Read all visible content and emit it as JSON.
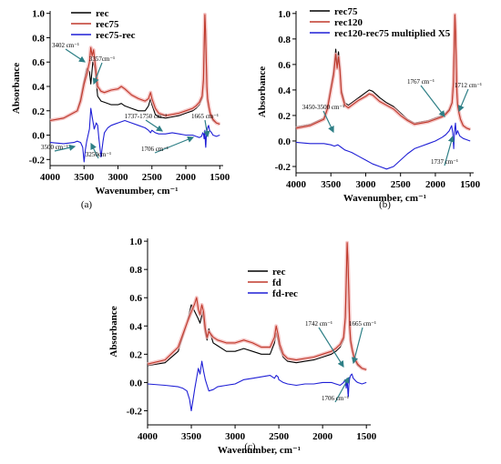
{
  "chart_data": [
    {
      "id": "a",
      "type": "line",
      "panel_label": "(a)",
      "xlabel": "Wavenumber, cm⁻¹",
      "ylabel": "Absorbance",
      "xlim": [
        4000,
        1450
      ],
      "ylim": [
        -0.25,
        1.02
      ],
      "xticks": [
        4000,
        3500,
        3000,
        2500,
        2000,
        1500
      ],
      "yticks": [
        -0.2,
        0.0,
        0.2,
        0.4,
        0.6,
        0.8,
        1.0
      ],
      "ytick_labels": [
        "-0.2",
        "0.0",
        "0.2",
        "0.4",
        "0.6",
        "0.8",
        "1.0"
      ],
      "legend": "top-left",
      "series": [
        {
          "name": "rec",
          "color": "#000000",
          "x": [
            4000,
            3800,
            3600,
            3550,
            3500,
            3460,
            3420,
            3400,
            3370,
            3340,
            3300,
            3250,
            3200,
            3100,
            3000,
            2950,
            2900,
            2800,
            2700,
            2600,
            2550,
            2520,
            2500,
            2450,
            2400,
            2300,
            2200,
            2100,
            2000,
            1900,
            1850,
            1800,
            1760,
            1740,
            1730,
            1720,
            1710,
            1700,
            1690,
            1680,
            1660,
            1640,
            1600,
            1550,
            1500
          ],
          "y": [
            0.12,
            0.14,
            0.2,
            0.3,
            0.45,
            0.55,
            0.52,
            0.42,
            0.6,
            0.55,
            0.32,
            0.28,
            0.27,
            0.25,
            0.25,
            0.26,
            0.24,
            0.22,
            0.2,
            0.2,
            0.24,
            0.3,
            0.25,
            0.17,
            0.15,
            0.14,
            0.15,
            0.16,
            0.18,
            0.2,
            0.22,
            0.25,
            0.3,
            0.45,
            0.7,
            0.98,
            0.85,
            0.6,
            0.38,
            0.28,
            0.22,
            0.17,
            0.12,
            0.1,
            0.09
          ]
        },
        {
          "name": "rec75",
          "color": "#c0392b",
          "x": [
            4000,
            3800,
            3600,
            3550,
            3500,
            3460,
            3420,
            3400,
            3380,
            3360,
            3340,
            3300,
            3250,
            3200,
            3100,
            3000,
            2950,
            2900,
            2800,
            2700,
            2600,
            2550,
            2520,
            2500,
            2450,
            2400,
            2300,
            2200,
            2100,
            2000,
            1900,
            1850,
            1800,
            1760,
            1740,
            1730,
            1720,
            1710,
            1700,
            1690,
            1680,
            1660,
            1640,
            1600,
            1550,
            1500
          ],
          "y": [
            0.12,
            0.14,
            0.2,
            0.28,
            0.42,
            0.5,
            0.6,
            0.72,
            0.65,
            0.7,
            0.6,
            0.4,
            0.36,
            0.35,
            0.37,
            0.38,
            0.4,
            0.38,
            0.33,
            0.3,
            0.28,
            0.3,
            0.35,
            0.3,
            0.22,
            0.18,
            0.16,
            0.17,
            0.18,
            0.2,
            0.22,
            0.24,
            0.27,
            0.32,
            0.46,
            0.72,
            0.99,
            0.86,
            0.62,
            0.4,
            0.3,
            0.23,
            0.18,
            0.13,
            0.1,
            0.09
          ]
        },
        {
          "name": "rec75-rec",
          "color": "#1f1fd6",
          "x": [
            4000,
            3800,
            3650,
            3600,
            3550,
            3520,
            3500,
            3480,
            3460,
            3440,
            3420,
            3400,
            3380,
            3350,
            3320,
            3300,
            3280,
            3250,
            3220,
            3200,
            3150,
            3100,
            3000,
            2900,
            2800,
            2700,
            2600,
            2550,
            2520,
            2500,
            2450,
            2400,
            2300,
            2200,
            2100,
            2000,
            1900,
            1850,
            1800,
            1770,
            1750,
            1740,
            1730,
            1720,
            1710,
            1706,
            1700,
            1690,
            1680,
            1665,
            1650,
            1620,
            1600,
            1550,
            1500
          ],
          "y": [
            -0.06,
            -0.07,
            -0.06,
            -0.05,
            -0.06,
            -0.1,
            -0.22,
            -0.12,
            -0.05,
            0.0,
            0.05,
            0.22,
            0.15,
            0.05,
            0.1,
            0.08,
            -0.03,
            -0.18,
            -0.05,
            0.02,
            0.06,
            0.08,
            0.1,
            0.12,
            0.1,
            0.08,
            0.06,
            0.04,
            0.02,
            0.04,
            0.02,
            0.01,
            0.01,
            0.02,
            0.01,
            0.0,
            0.0,
            -0.01,
            -0.02,
            -0.01,
            0.02,
            0.01,
            -0.03,
            0.04,
            -0.08,
            -0.1,
            -0.02,
            0.03,
            0.06,
            0.08,
            0.04,
            0.02,
            0.0,
            -0.01,
            0.0
          ]
        }
      ],
      "annotations": [
        {
          "text": "3402 cm⁻¹",
          "x": 3402,
          "y": 0.72
        },
        {
          "text": "3357cm⁻¹",
          "x": 3357,
          "y": 0.6
        },
        {
          "text": "1737-1750 cm⁻¹",
          "x": 1745,
          "y": 0.22
        },
        {
          "text": "1665 cm⁻¹",
          "x": 1665,
          "y": 0.18
        },
        {
          "text": "3500 cm⁻¹",
          "x": 3500,
          "y": -0.18
        },
        {
          "text": "3250cm⁻¹",
          "x": 3250,
          "y": -0.2
        },
        {
          "text": "1706 cm⁻¹",
          "x": 1706,
          "y": -0.2
        }
      ]
    },
    {
      "id": "b",
      "type": "line",
      "panel_label": "(b)",
      "xlabel": "Wavenumber, cm⁻¹",
      "ylabel": "Absorbance",
      "xlim": [
        4000,
        1450
      ],
      "ylim": [
        -0.25,
        1.02
      ],
      "xticks": [
        4000,
        3500,
        3000,
        2500,
        2000,
        1500
      ],
      "yticks": [
        -0.2,
        0.0,
        0.2,
        0.4,
        0.6,
        0.8,
        1.0
      ],
      "ytick_labels": [
        "-0.2",
        "0.0",
        "0.2",
        "0.4",
        "0.6",
        "0.8",
        "1.0"
      ],
      "legend": "top-left",
      "series": [
        {
          "name": "rec75",
          "color": "#000000",
          "x": [
            4000,
            3800,
            3600,
            3550,
            3500,
            3460,
            3430,
            3410,
            3390,
            3370,
            3350,
            3300,
            3250,
            3200,
            3100,
            3000,
            2950,
            2900,
            2800,
            2700,
            2600,
            2500,
            2400,
            2300,
            2200,
            2100,
            2000,
            1900,
            1850,
            1800,
            1760,
            1740,
            1730,
            1720,
            1710,
            1700,
            1690,
            1680,
            1660,
            1640,
            1600,
            1550,
            1500
          ],
          "y": [
            0.11,
            0.13,
            0.18,
            0.26,
            0.42,
            0.55,
            0.72,
            0.6,
            0.7,
            0.58,
            0.4,
            0.3,
            0.28,
            0.3,
            0.34,
            0.38,
            0.4,
            0.39,
            0.34,
            0.3,
            0.27,
            0.22,
            0.17,
            0.14,
            0.15,
            0.16,
            0.18,
            0.2,
            0.22,
            0.25,
            0.3,
            0.45,
            0.7,
            0.99,
            0.85,
            0.6,
            0.38,
            0.28,
            0.22,
            0.17,
            0.12,
            0.1,
            0.09
          ]
        },
        {
          "name": "rec120",
          "color": "#c0392b",
          "x": [
            4000,
            3800,
            3600,
            3550,
            3500,
            3460,
            3430,
            3410,
            3390,
            3370,
            3350,
            3300,
            3250,
            3200,
            3100,
            3000,
            2950,
            2900,
            2800,
            2700,
            2600,
            2500,
            2400,
            2300,
            2200,
            2100,
            2000,
            1900,
            1850,
            1800,
            1760,
            1740,
            1730,
            1720,
            1710,
            1700,
            1690,
            1680,
            1660,
            1640,
            1600,
            1550,
            1500
          ],
          "y": [
            0.1,
            0.12,
            0.17,
            0.25,
            0.4,
            0.52,
            0.68,
            0.57,
            0.66,
            0.55,
            0.38,
            0.28,
            0.26,
            0.28,
            0.32,
            0.35,
            0.37,
            0.36,
            0.31,
            0.28,
            0.25,
            0.2,
            0.16,
            0.13,
            0.14,
            0.15,
            0.17,
            0.19,
            0.21,
            0.24,
            0.3,
            0.46,
            0.72,
            0.99,
            0.86,
            0.6,
            0.38,
            0.28,
            0.22,
            0.17,
            0.12,
            0.1,
            0.09
          ]
        },
        {
          "name": "rec120-rec75 multiplied X5",
          "color": "#1f1fd6",
          "x": [
            4000,
            3800,
            3600,
            3500,
            3450,
            3400,
            3350,
            3300,
            3200,
            3100,
            3000,
            2900,
            2800,
            2700,
            2600,
            2500,
            2400,
            2300,
            2200,
            2100,
            2000,
            1900,
            1850,
            1800,
            1767,
            1750,
            1737,
            1725,
            1712,
            1700,
            1680,
            1650,
            1600,
            1550,
            1500
          ],
          "y": [
            -0.01,
            -0.02,
            -0.02,
            -0.03,
            -0.04,
            -0.03,
            -0.05,
            -0.07,
            -0.09,
            -0.12,
            -0.15,
            -0.18,
            -0.2,
            -0.22,
            -0.2,
            -0.15,
            -0.1,
            -0.06,
            -0.04,
            -0.02,
            0.0,
            0.03,
            0.05,
            0.08,
            0.12,
            0.06,
            -0.06,
            0.08,
            0.14,
            0.05,
            0.08,
            0.04,
            0.02,
            0.01,
            0.0
          ]
        }
      ],
      "annotations": [
        {
          "text": "3450-3500 cm⁻¹",
          "x": 3475,
          "y": 0.12
        },
        {
          "text": "1767 cm⁻¹",
          "x": 1767,
          "y": 0.28
        },
        {
          "text": "1712 cm⁻¹",
          "x": 1712,
          "y": 0.28
        },
        {
          "text": "1737 cm⁻¹",
          "x": 1737,
          "y": -0.18
        }
      ]
    },
    {
      "id": "c",
      "type": "line",
      "panel_label": "(c)",
      "xlabel": "Wavenumber, cm⁻¹",
      "ylabel": "Absorbance",
      "xlim": [
        4000,
        1450
      ],
      "ylim": [
        -0.3,
        1.02
      ],
      "xticks": [
        4000,
        3500,
        3000,
        2500,
        2000,
        1500
      ],
      "yticks": [
        -0.2,
        0.0,
        0.2,
        0.4,
        0.6,
        0.8,
        1.0
      ],
      "ytick_labels": [
        "-0.2",
        "0.0",
        "0.2",
        "0.4",
        "0.6",
        "0.8",
        "1.0"
      ],
      "legend": "top-right",
      "series": [
        {
          "name": "rec",
          "color": "#000000",
          "x": [
            4000,
            3800,
            3650,
            3550,
            3500,
            3460,
            3420,
            3400,
            3370,
            3340,
            3320,
            3300,
            3250,
            3200,
            3100,
            3000,
            2900,
            2800,
            2700,
            2600,
            2550,
            2530,
            2510,
            2490,
            2450,
            2400,
            2300,
            2200,
            2100,
            2000,
            1900,
            1850,
            1800,
            1760,
            1740,
            1730,
            1720,
            1710,
            1700,
            1690,
            1680,
            1660,
            1640,
            1600,
            1550,
            1500
          ],
          "y": [
            0.12,
            0.14,
            0.22,
            0.42,
            0.55,
            0.5,
            0.45,
            0.42,
            0.5,
            0.35,
            0.3,
            0.38,
            0.28,
            0.26,
            0.22,
            0.22,
            0.24,
            0.22,
            0.2,
            0.2,
            0.28,
            0.35,
            0.3,
            0.24,
            0.18,
            0.15,
            0.14,
            0.15,
            0.16,
            0.18,
            0.2,
            0.22,
            0.25,
            0.3,
            0.45,
            0.7,
            0.98,
            0.85,
            0.6,
            0.38,
            0.28,
            0.22,
            0.17,
            0.12,
            0.1,
            0.09
          ]
        },
        {
          "name": "fd",
          "color": "#c0392b",
          "x": [
            4000,
            3800,
            3650,
            3550,
            3500,
            3460,
            3440,
            3420,
            3400,
            3380,
            3360,
            3340,
            3320,
            3300,
            3250,
            3200,
            3100,
            3000,
            2900,
            2800,
            2700,
            2600,
            2550,
            2530,
            2510,
            2490,
            2450,
            2400,
            2300,
            2200,
            2100,
            2000,
            1900,
            1850,
            1800,
            1760,
            1740,
            1730,
            1720,
            1710,
            1700,
            1690,
            1680,
            1660,
            1640,
            1600,
            1550,
            1500
          ],
          "y": [
            0.13,
            0.16,
            0.25,
            0.42,
            0.5,
            0.56,
            0.6,
            0.52,
            0.48,
            0.55,
            0.5,
            0.38,
            0.32,
            0.36,
            0.32,
            0.3,
            0.28,
            0.28,
            0.3,
            0.28,
            0.25,
            0.25,
            0.32,
            0.4,
            0.34,
            0.27,
            0.2,
            0.17,
            0.16,
            0.17,
            0.18,
            0.2,
            0.22,
            0.24,
            0.27,
            0.32,
            0.46,
            0.72,
            0.99,
            0.86,
            0.62,
            0.4,
            0.3,
            0.23,
            0.18,
            0.13,
            0.1,
            0.09
          ]
        },
        {
          "name": "fd-rec",
          "color": "#1f1fd6",
          "x": [
            4000,
            3800,
            3650,
            3600,
            3550,
            3520,
            3500,
            3480,
            3460,
            3440,
            3420,
            3400,
            3380,
            3360,
            3340,
            3320,
            3300,
            3250,
            3200,
            3100,
            3000,
            2900,
            2800,
            2700,
            2600,
            2550,
            2530,
            2510,
            2500,
            2450,
            2400,
            2300,
            2200,
            2100,
            2000,
            1900,
            1850,
            1800,
            1760,
            1742,
            1730,
            1720,
            1710,
            1706,
            1700,
            1690,
            1680,
            1665,
            1650,
            1620,
            1600,
            1550,
            1500
          ],
          "y": [
            -0.01,
            -0.02,
            -0.03,
            -0.04,
            -0.06,
            -0.12,
            -0.2,
            -0.12,
            -0.04,
            0.03,
            0.1,
            0.06,
            0.15,
            0.08,
            0.02,
            -0.02,
            -0.06,
            -0.05,
            -0.03,
            -0.02,
            -0.01,
            0.02,
            0.03,
            0.04,
            0.05,
            0.03,
            0.05,
            0.04,
            0.02,
            0.0,
            -0.01,
            -0.02,
            -0.01,
            -0.01,
            0.0,
            0.0,
            -0.01,
            -0.02,
            0.0,
            0.02,
            -0.04,
            0.03,
            -0.08,
            -0.1,
            -0.02,
            0.03,
            0.05,
            0.06,
            0.03,
            0.01,
            0.0,
            -0.01,
            0.0
          ]
        }
      ],
      "annotations": [
        {
          "text": "1742 cm⁻¹",
          "x": 1742,
          "y": 0.26
        },
        {
          "text": "1665 cm⁻¹",
          "x": 1665,
          "y": 0.4
        },
        {
          "text": "1706 cm⁻¹",
          "x": 1706,
          "y": -0.2
        }
      ]
    }
  ]
}
